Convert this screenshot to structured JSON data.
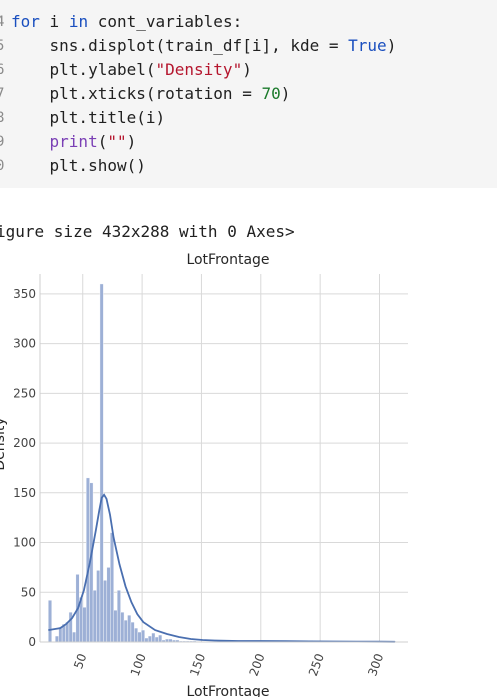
{
  "code": {
    "lines": [
      {
        "num": "4",
        "parts": [
          {
            "t": "for",
            "c": "kw"
          },
          {
            "t": " i "
          },
          {
            "t": "in",
            "c": "kw"
          },
          {
            "t": " cont_variables:"
          }
        ]
      },
      {
        "num": "5",
        "parts": [
          {
            "t": "    sns.displot(train_df[i], kde = "
          },
          {
            "t": "True",
            "c": "kw"
          },
          {
            "t": ")"
          }
        ]
      },
      {
        "num": "6",
        "parts": [
          {
            "t": "    plt.ylabel("
          },
          {
            "t": "\"Density\"",
            "c": "str"
          },
          {
            "t": ")"
          }
        ]
      },
      {
        "num": "7",
        "parts": [
          {
            "t": "    plt.xticks(rotation = "
          },
          {
            "t": "70",
            "c": "num"
          },
          {
            "t": ")"
          }
        ]
      },
      {
        "num": "8",
        "parts": [
          {
            "t": "    plt.title(i)"
          }
        ]
      },
      {
        "num": "9",
        "parts": [
          {
            "t": "    "
          },
          {
            "t": "print",
            "c": "fn"
          },
          {
            "t": "("
          },
          {
            "t": "\"\"",
            "c": "str"
          },
          {
            "t": ")"
          }
        ]
      },
      {
        "num": "0",
        "parts": [
          {
            "t": "    plt.show()"
          }
        ]
      }
    ]
  },
  "output": {
    "text": "igure size 432x288 with 0 Axes>"
  },
  "chart_data": {
    "type": "bar",
    "title": "LotFrontage",
    "xlabel": "LotFrontage",
    "ylabel": "Density",
    "xlim": [
      14,
      324
    ],
    "ylim": [
      0,
      370
    ],
    "x_ticks": [
      "50",
      "100",
      "150",
      "200",
      "250",
      "300"
    ],
    "x_tick_values": [
      50,
      100,
      150,
      200,
      250,
      300
    ],
    "y_ticks": [
      "0",
      "50",
      "100",
      "150",
      "200",
      "250",
      "300",
      "350"
    ],
    "y_tick_values": [
      0,
      50,
      100,
      150,
      200,
      250,
      300,
      350
    ],
    "grid": true,
    "bar_color": "#9db0d6",
    "bar_edge_color": "#ffffff",
    "kde_color": "#4a6fb0",
    "bin_width": 2.9,
    "bins_start": 21,
    "bar_values": [
      42,
      0,
      6,
      15,
      18,
      20,
      30,
      10,
      68,
      45,
      35,
      165,
      160,
      52,
      72,
      360,
      62,
      75,
      110,
      32,
      52,
      30,
      22,
      27,
      20,
      14,
      10,
      12,
      4,
      6,
      9,
      5,
      7,
      2,
      3,
      3,
      2,
      2,
      1,
      1,
      1,
      1,
      1,
      0,
      0,
      0,
      0,
      0,
      0,
      1,
      0,
      0,
      0,
      0,
      0,
      0,
      0,
      0,
      0,
      0,
      0,
      0,
      0,
      0,
      0,
      0,
      0,
      0,
      0,
      0,
      0,
      0,
      0,
      0,
      0,
      0,
      0,
      0,
      0,
      0,
      0,
      0,
      0,
      0,
      0,
      0,
      0,
      0,
      0,
      0,
      0,
      0,
      0,
      0,
      0,
      0,
      0,
      0,
      0,
      0,
      1
    ],
    "kde_x": [
      21,
      26,
      31,
      36,
      41,
      46,
      51,
      56,
      61,
      64,
      66,
      68,
      70,
      73,
      76,
      81,
      86,
      91,
      96,
      101,
      111,
      121,
      131,
      141,
      151,
      161,
      181,
      201,
      221,
      241,
      261,
      281,
      301,
      313
    ],
    "kde_y": [
      12,
      13,
      14,
      18,
      24,
      34,
      52,
      80,
      112,
      133,
      145,
      148,
      144,
      128,
      105,
      78,
      56,
      40,
      28,
      20,
      12,
      8,
      5,
      3,
      2,
      1.5,
      1,
      1,
      0.8,
      0.6,
      0.5,
      0.4,
      0.3,
      0.2
    ]
  }
}
